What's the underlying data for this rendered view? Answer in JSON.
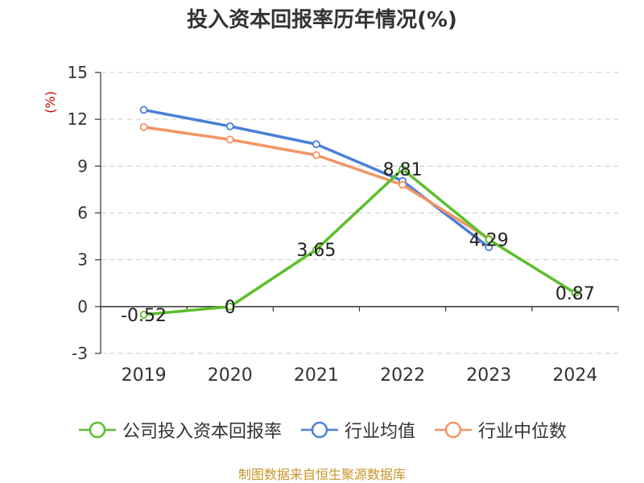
{
  "chart_data": {
    "type": "line",
    "title": "投入资本回报率历年情况(%)",
    "ylabel": "(%)",
    "categories": [
      "2019",
      "2020",
      "2021",
      "2022",
      "2023",
      "2024"
    ],
    "ylim": [
      -3,
      15
    ],
    "yticks": [
      -3,
      0,
      3,
      6,
      9,
      12,
      15
    ],
    "grid": true,
    "legend_position": "bottom",
    "series": [
      {
        "name": "公司投入资本回报率",
        "color": "#5bbf2a",
        "values": [
          -0.52,
          0,
          3.65,
          8.81,
          4.29,
          0.87
        ],
        "labels": [
          "-0.52",
          "0",
          "3.65",
          "8.81",
          "4.29",
          "0.87"
        ]
      },
      {
        "name": "行业均值",
        "color": "#4a7fd8",
        "values": [
          12.6,
          11.55,
          10.4,
          8.05,
          3.8,
          null
        ]
      },
      {
        "name": "行业中位数",
        "color": "#f49463",
        "values": [
          11.5,
          10.7,
          9.7,
          7.8,
          4.35,
          null
        ]
      }
    ]
  },
  "footer": {
    "source": "制图数据来自恒生聚源数据库"
  }
}
